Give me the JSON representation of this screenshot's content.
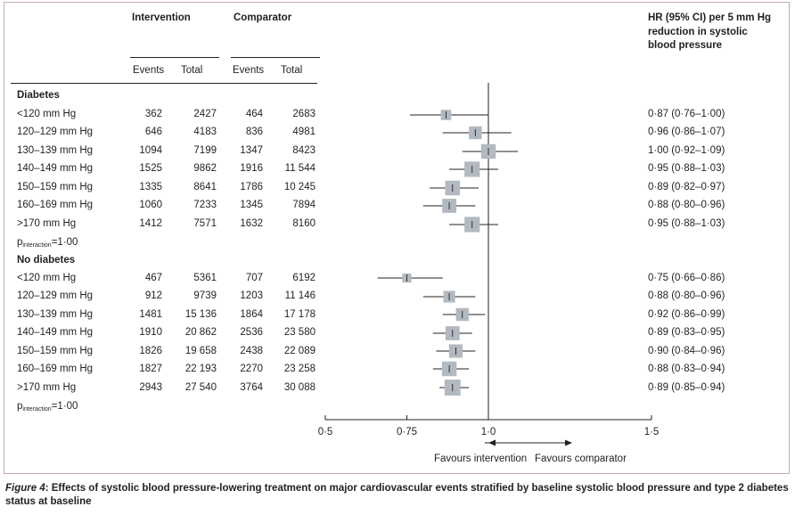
{
  "headers": {
    "intervention": "Intervention",
    "comparator": "Comparator",
    "events": "Events",
    "total": "Total",
    "hr_line1": "HR (95% CI) per 5 mm Hg",
    "hr_line2": "reduction in systolic",
    "hr_line3": "blood pressure"
  },
  "groups": [
    {
      "name": "Diabetes",
      "p_label": "p",
      "p_sub": "interaction",
      "p_value": "=1·00",
      "rows": [
        {
          "label": "<120 mm Hg",
          "ie": "362",
          "it": "2427",
          "ce": "464",
          "ct": "2683",
          "hr_text": "0·87 (0·76–1·00)"
        },
        {
          "label": "120–129 mm Hg",
          "ie": "646",
          "it": "4183",
          "ce": "836",
          "ct": "4981",
          "hr_text": "0·96 (0·86–1·07)"
        },
        {
          "label": "130–139 mm Hg",
          "ie": "1094",
          "it": "7199",
          "ce": "1347",
          "ct": "8423",
          "hr_text": "1·00 (0·92–1·09)"
        },
        {
          "label": "140–149 mm Hg",
          "ie": "1525",
          "it": "9862",
          "ce": "1916",
          "ct": "11 544",
          "hr_text": "0·95 (0·88–1·03)"
        },
        {
          "label": "150–159 mm Hg",
          "ie": "1335",
          "it": "8641",
          "ce": "1786",
          "ct": "10 245",
          "hr_text": "0·89 (0·82–0·97)"
        },
        {
          "label": "160–169 mm Hg",
          "ie": "1060",
          "it": "7233",
          "ce": "1345",
          "ct": "7894",
          "hr_text": "0·88 (0·80–0·96)"
        },
        {
          "label": ">170 mm Hg",
          "ie": "1412",
          "it": "7571",
          "ce": "1632",
          "ct": "8160",
          "hr_text": "0·95 (0·88–1·03)"
        }
      ]
    },
    {
      "name": "No diabetes",
      "p_label": "p",
      "p_sub": "interaction",
      "p_value": "=1·00",
      "rows": [
        {
          "label": "<120 mm Hg",
          "ie": "467",
          "it": "5361",
          "ce": "707",
          "ct": "6192",
          "hr_text": "0·75 (0·66–0·86)"
        },
        {
          "label": "120–129 mm Hg",
          "ie": "912",
          "it": "9739",
          "ce": "1203",
          "ct": "11 146",
          "hr_text": "0·88 (0·80–0·96)"
        },
        {
          "label": "130–139 mm Hg",
          "ie": "1481",
          "it": "15 136",
          "ce": "1864",
          "ct": "17 178",
          "hr_text": "0·92 (0·86–0·99)"
        },
        {
          "label": "140–149 mm Hg",
          "ie": "1910",
          "it": "20 862",
          "ce": "2536",
          "ct": "23 580",
          "hr_text": "0·89 (0·83–0·95)"
        },
        {
          "label": "150–159 mm Hg",
          "ie": "1826",
          "it": "19 658",
          "ce": "2438",
          "ct": "22 089",
          "hr_text": "0·90 (0·84–0·96)"
        },
        {
          "label": "160–169 mm Hg",
          "ie": "1827",
          "it": "22 193",
          "ce": "2270",
          "ct": "23 258",
          "hr_text": "0·88 (0·83–0·94)"
        },
        {
          "label": ">170 mm Hg",
          "ie": "2943",
          "it": "27 540",
          "ce": "3764",
          "ct": "30 088",
          "hr_text": "0·89 (0·85–0·94)"
        }
      ]
    }
  ],
  "chart_data": {
    "type": "forest",
    "xlim": [
      0.5,
      1.5
    ],
    "reference_line": 1.0,
    "xticks": [
      {
        "value": 0.5,
        "label": "0·5"
      },
      {
        "value": 0.75,
        "label": "0·75"
      },
      {
        "value": 1.0,
        "label": "1·0"
      },
      {
        "value": 1.5,
        "label": "1·5"
      }
    ],
    "left_arrow_label": "Favours intervention",
    "right_arrow_label": "Favours comparator",
    "series": [
      {
        "group": "Diabetes",
        "points": [
          {
            "category": "<120 mm Hg",
            "hr": 0.87,
            "lo": 0.76,
            "hi": 1.0,
            "box": 0.4
          },
          {
            "category": "120–129 mm Hg",
            "hr": 0.96,
            "lo": 0.86,
            "hi": 1.07,
            "box": 0.6
          },
          {
            "category": "130–139 mm Hg",
            "hr": 1.0,
            "lo": 0.92,
            "hi": 1.09,
            "box": 0.75
          },
          {
            "category": "140–149 mm Hg",
            "hr": 0.95,
            "lo": 0.88,
            "hi": 1.03,
            "box": 0.8
          },
          {
            "category": "150–159 mm Hg",
            "hr": 0.89,
            "lo": 0.82,
            "hi": 0.97,
            "box": 0.75
          },
          {
            "category": "160–169 mm Hg",
            "hr": 0.88,
            "lo": 0.8,
            "hi": 0.96,
            "box": 0.7
          },
          {
            "category": ">170 mm Hg",
            "hr": 0.95,
            "lo": 0.88,
            "hi": 1.03,
            "box": 0.8
          }
        ]
      },
      {
        "group": "No diabetes",
        "points": [
          {
            "category": "<120 mm Hg",
            "hr": 0.75,
            "lo": 0.66,
            "hi": 0.86,
            "box": 0.3
          },
          {
            "category": "120–129 mm Hg",
            "hr": 0.88,
            "lo": 0.8,
            "hi": 0.96,
            "box": 0.5
          },
          {
            "category": "130–139 mm Hg",
            "hr": 0.92,
            "lo": 0.86,
            "hi": 0.99,
            "box": 0.6
          },
          {
            "category": "140–149 mm Hg",
            "hr": 0.89,
            "lo": 0.83,
            "hi": 0.95,
            "box": 0.7
          },
          {
            "category": "150–159 mm Hg",
            "hr": 0.9,
            "lo": 0.84,
            "hi": 0.96,
            "box": 0.65
          },
          {
            "category": "160–169 mm Hg",
            "hr": 0.88,
            "lo": 0.83,
            "hi": 0.94,
            "box": 0.75
          },
          {
            "category": ">170 mm Hg",
            "hr": 0.89,
            "lo": 0.85,
            "hi": 0.94,
            "box": 0.85
          }
        ]
      }
    ],
    "colors": {
      "box": "#b2b9c1",
      "line": "#231f20"
    }
  },
  "caption": {
    "prefix": "Figure 4",
    "text": ": Effects of systolic blood pressure-lowering treatment on major cardiovascular events stratified by baseline systolic blood pressure and type 2 diabetes status at baseline"
  }
}
